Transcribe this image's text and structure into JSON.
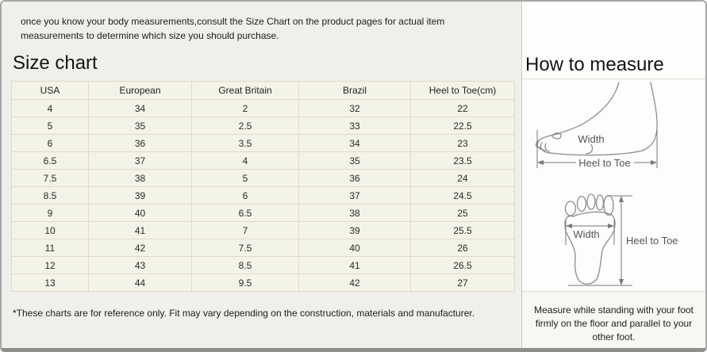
{
  "intro": "once you know your body measurements,consult the Size Chart on the product pages for actual item measurements to determine which size you should purchase.",
  "size_chart": {
    "title": "Size chart",
    "columns": [
      "USA",
      "European",
      "Great Britain",
      "Brazil",
      "Heel to Toe(cm)"
    ],
    "rows": [
      [
        "4",
        "34",
        "2",
        "32",
        "22"
      ],
      [
        "5",
        "35",
        "2.5",
        "33",
        "22.5"
      ],
      [
        "6",
        "36",
        "3.5",
        "34",
        "23"
      ],
      [
        "6.5",
        "37",
        "4",
        "35",
        "23.5"
      ],
      [
        "7.5",
        "38",
        "5",
        "36",
        "24"
      ],
      [
        "8.5",
        "39",
        "6",
        "37",
        "24.5"
      ],
      [
        "9",
        "40",
        "6.5",
        "38",
        "25"
      ],
      [
        "10",
        "41",
        "7",
        "39",
        "25.5"
      ],
      [
        "11",
        "42",
        "7.5",
        "40",
        "26"
      ],
      [
        "12",
        "43",
        "8.5",
        "41",
        "26.5"
      ],
      [
        "13",
        "44",
        "9.5",
        "42",
        "27"
      ]
    ],
    "footnote": "*These charts are for reference only. Fit may vary depending on the construction, materials and manufacturer."
  },
  "how_to_measure": {
    "title": "How to measure",
    "labels": {
      "width": "Width",
      "heel_to_toe": "Heel to Toe"
    },
    "note": "Measure while standing with your foot firmly on the floor and parallel to your other foot."
  },
  "colors": {
    "page_bg": "#f0efec",
    "panel_bg": "#fdfdfb",
    "table_cell_bg": "#f4f3e8",
    "table_border": "#dcdbc8",
    "outer_border": "#a6a6a4"
  }
}
